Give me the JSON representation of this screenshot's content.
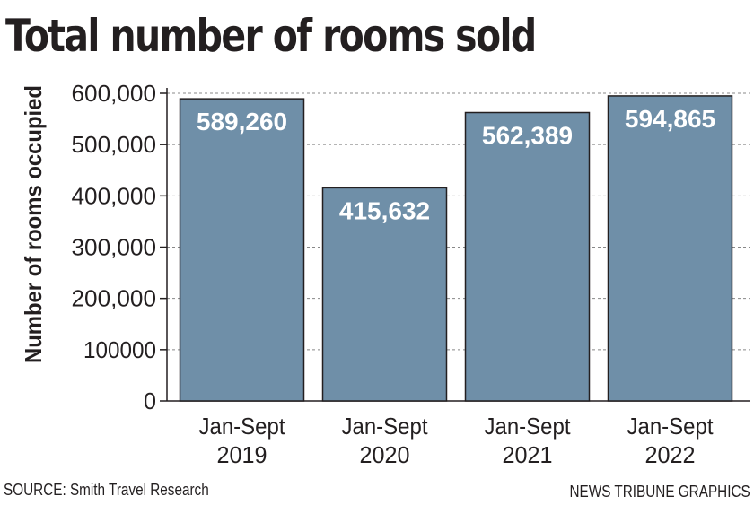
{
  "chart_data": {
    "type": "bar",
    "title": "Total number of rooms sold",
    "ylabel": "Number of rooms occupied",
    "xlabel": "",
    "categories": [
      [
        "Jan-Sept",
        "2019"
      ],
      [
        "Jan-Sept",
        "2020"
      ],
      [
        "Jan-Sept",
        "2021"
      ],
      [
        "Jan-Sept",
        "2022"
      ]
    ],
    "values": [
      589260,
      415632,
      562389,
      594865
    ],
    "value_labels": [
      "589,260",
      "415,632",
      "562,389",
      "594,865"
    ],
    "ylim": [
      0,
      600000
    ],
    "yticks": [
      0,
      100000,
      200000,
      300000,
      400000,
      500000,
      600000
    ],
    "ytick_labels": [
      "0",
      "100000",
      "200,000",
      "300,000",
      "400,000",
      "500,000",
      "600,000"
    ],
    "grid": true,
    "legend": "none",
    "colors": {
      "bar": "#6f8fa8",
      "bar_edge": "#231f20",
      "value_text": "#ffffff",
      "grid": "#888888",
      "axis": "#231f20"
    }
  },
  "footer": {
    "source": "SOURCE: Smith Travel Research",
    "credit": "NEWS TRIBUNE GRAPHICS"
  }
}
